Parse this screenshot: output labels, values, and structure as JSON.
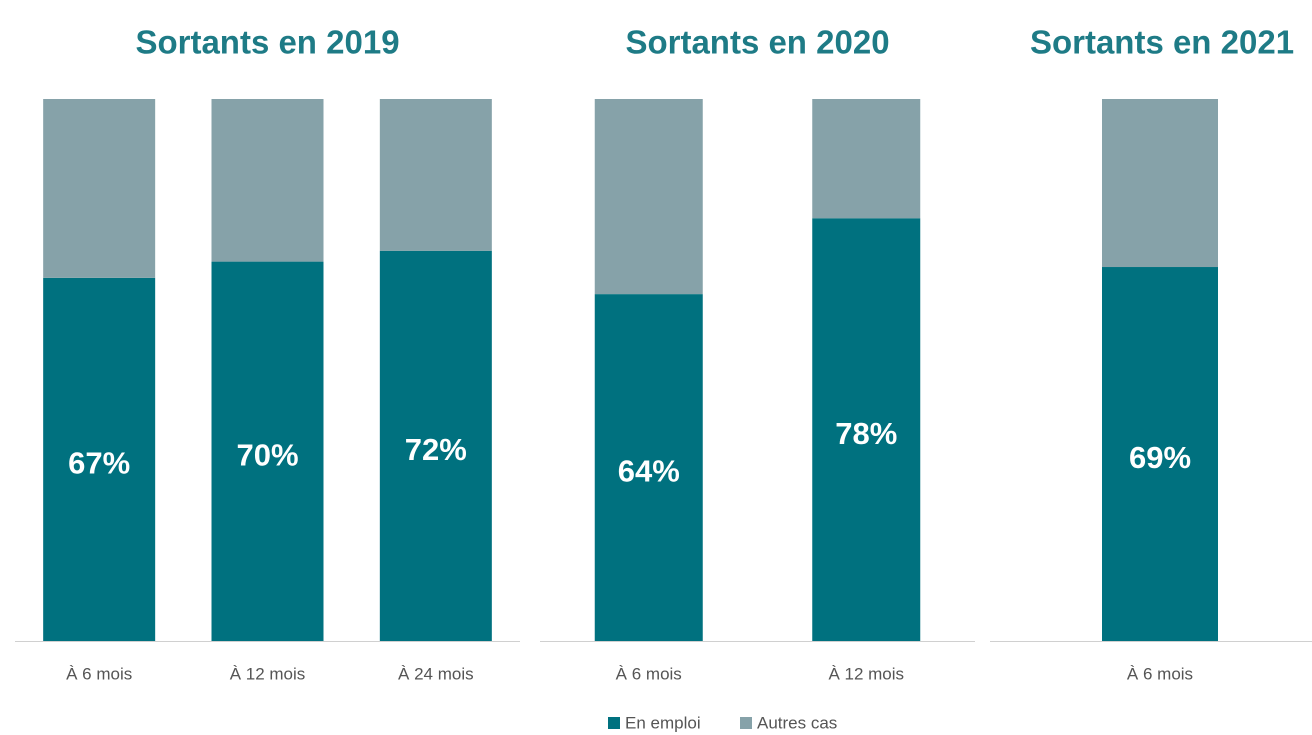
{
  "legend": [
    {
      "name": "En emploi",
      "color": "#00717f"
    },
    {
      "name": "Autres cas",
      "color": "#86a2a9"
    }
  ],
  "chart_data": [
    {
      "type": "bar",
      "title": "Sortants en 2019",
      "categories": [
        "À 6 mois",
        "À 12 mois",
        "À 24 mois"
      ],
      "series": [
        {
          "values": [
            67,
            70,
            72
          ],
          "value_labels": [
            "67%",
            "70%",
            "72%"
          ]
        },
        {
          "values": [
            33,
            30,
            28
          ]
        }
      ],
      "ylim": [
        0,
        100
      ]
    },
    {
      "type": "bar",
      "title": "Sortants en 2020",
      "categories": [
        "À 6 mois",
        "À 12 mois"
      ],
      "series": [
        {
          "values": [
            64,
            78
          ],
          "value_labels": [
            "64%",
            "78%"
          ]
        },
        {
          "values": [
            36,
            22
          ]
        }
      ],
      "ylim": [
        0,
        100
      ]
    },
    {
      "type": "bar",
      "title": "Sortants en 2021",
      "categories": [
        "À 6 mois"
      ],
      "series": [
        {
          "values": [
            69
          ],
          "value_labels": [
            "69%"
          ]
        },
        {
          "values": [
            31
          ]
        }
      ],
      "ylim": [
        0,
        100
      ]
    }
  ]
}
